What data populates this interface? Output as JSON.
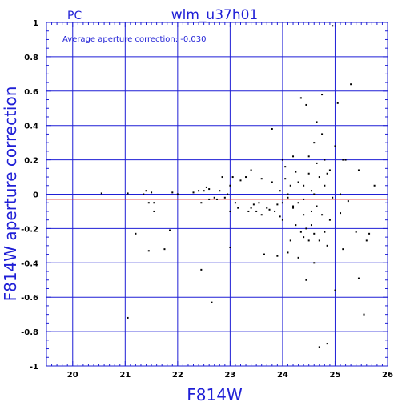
{
  "chart_data": {
    "type": "scatter",
    "title": "wlm_u37h01",
    "corner_label": "PC",
    "annotation": "Average aperture correction: -0.030",
    "xlabel": "F814W",
    "ylabel": "F814W aperture correction",
    "xlim": [
      19.5,
      26
    ],
    "ylim": [
      -1,
      1
    ],
    "x_ticks": [
      20,
      21,
      22,
      23,
      24,
      25,
      26
    ],
    "x_tick_labels": [
      "20",
      "21",
      "22",
      "23",
      "24",
      "25",
      "26"
    ],
    "y_ticks": [
      -1,
      -0.8,
      -0.6,
      -0.4,
      -0.2,
      0,
      0.2,
      0.4,
      0.6,
      0.8,
      1
    ],
    "y_tick_labels": [
      "-1",
      "-0.8",
      "-0.6",
      "-0.4",
      "-0.2",
      "0",
      "0.2",
      "0.4",
      "0.6",
      "0.8",
      "1"
    ],
    "grid": true,
    "reference_lines": [
      {
        "y": 0,
        "color": "#1f1fd6"
      },
      {
        "y": -0.03,
        "color": "#e02020"
      }
    ],
    "colors": {
      "axes": "#1f1fd6",
      "points": "#000000",
      "average_line": "#e02020"
    },
    "points": [
      [
        20.55,
        0.005
      ],
      [
        21.05,
        0.005
      ],
      [
        21.05,
        -0.72
      ],
      [
        21.2,
        -0.23
      ],
      [
        21.35,
        0.0
      ],
      [
        21.4,
        0.02
      ],
      [
        21.45,
        -0.05
      ],
      [
        21.45,
        -0.33
      ],
      [
        21.5,
        0.01
      ],
      [
        21.55,
        -0.05
      ],
      [
        21.55,
        -0.1
      ],
      [
        21.75,
        -0.32
      ],
      [
        21.85,
        -0.21
      ],
      [
        21.9,
        0.01
      ],
      [
        22.0,
        0.0
      ],
      [
        22.3,
        0.01
      ],
      [
        22.4,
        0.02
      ],
      [
        22.45,
        -0.05
      ],
      [
        22.45,
        -0.44
      ],
      [
        22.5,
        0.02
      ],
      [
        22.55,
        0.04
      ],
      [
        22.6,
        -0.03
      ],
      [
        22.6,
        0.03
      ],
      [
        22.65,
        -0.63
      ],
      [
        22.7,
        -0.02
      ],
      [
        22.75,
        -0.03
      ],
      [
        22.8,
        0.02
      ],
      [
        22.85,
        0.1
      ],
      [
        22.9,
        -0.02
      ],
      [
        22.95,
        0.0
      ],
      [
        23.0,
        0.05
      ],
      [
        23.0,
        -0.31
      ],
      [
        23.0,
        -0.1
      ],
      [
        23.05,
        0.1
      ],
      [
        23.1,
        -0.05
      ],
      [
        23.15,
        -0.08
      ],
      [
        23.2,
        0.08
      ],
      [
        23.3,
        0.1
      ],
      [
        23.35,
        -0.1
      ],
      [
        23.4,
        -0.08
      ],
      [
        23.4,
        0.14
      ],
      [
        23.45,
        -0.06
      ],
      [
        23.5,
        -0.1
      ],
      [
        23.55,
        -0.05
      ],
      [
        23.6,
        0.09
      ],
      [
        23.6,
        -0.12
      ],
      [
        23.65,
        -0.35
      ],
      [
        23.7,
        -0.08
      ],
      [
        23.75,
        -0.09
      ],
      [
        23.8,
        0.07
      ],
      [
        23.8,
        0.38
      ],
      [
        23.85,
        -0.1
      ],
      [
        23.9,
        -0.06
      ],
      [
        23.9,
        -0.36
      ],
      [
        23.95,
        0.02
      ],
      [
        24.0,
        0.2
      ],
      [
        24.0,
        -0.05
      ],
      [
        24.0,
        -0.15
      ],
      [
        24.05,
        0.16
      ],
      [
        24.05,
        0.09
      ],
      [
        24.1,
        -0.02
      ],
      [
        24.1,
        0.0
      ],
      [
        24.1,
        -0.34
      ],
      [
        24.15,
        -0.27
      ],
      [
        24.15,
        0.05
      ],
      [
        24.2,
        -0.08
      ],
      [
        24.2,
        0.22
      ],
      [
        24.25,
        0.13
      ],
      [
        24.25,
        -0.18
      ],
      [
        24.3,
        -0.05
      ],
      [
        24.3,
        -0.37
      ],
      [
        24.35,
        0.56
      ],
      [
        24.35,
        -0.22
      ],
      [
        24.4,
        0.05
      ],
      [
        24.4,
        -0.12
      ],
      [
        24.4,
        -0.03
      ],
      [
        24.45,
        0.52
      ],
      [
        24.45,
        -0.2
      ],
      [
        24.45,
        -0.5
      ],
      [
        24.5,
        0.22
      ],
      [
        24.5,
        -0.27
      ],
      [
        24.5,
        0.12
      ],
      [
        24.55,
        0.02
      ],
      [
        24.55,
        -0.1
      ],
      [
        24.6,
        0.3
      ],
      [
        24.6,
        -0.23
      ],
      [
        24.6,
        -0.4
      ],
      [
        24.65,
        0.42
      ],
      [
        24.65,
        0.18
      ],
      [
        24.65,
        -0.07
      ],
      [
        24.7,
        0.1
      ],
      [
        24.7,
        -0.27
      ],
      [
        24.7,
        -0.89
      ],
      [
        24.75,
        0.58
      ],
      [
        24.75,
        0.35
      ],
      [
        24.8,
        0.2
      ],
      [
        24.8,
        0.05
      ],
      [
        24.8,
        -0.22
      ],
      [
        24.85,
        -0.3
      ],
      [
        24.85,
        -0.87
      ],
      [
        24.9,
        0.14
      ],
      [
        24.9,
        -0.15
      ],
      [
        24.95,
        -0.02
      ],
      [
        24.95,
        0.98
      ],
      [
        25.0,
        0.28
      ],
      [
        25.0,
        -0.56
      ],
      [
        25.05,
        0.53
      ],
      [
        25.1,
        0.0
      ],
      [
        25.1,
        -0.11
      ],
      [
        25.15,
        -0.32
      ],
      [
        25.15,
        0.2
      ],
      [
        25.2,
        0.2
      ],
      [
        25.25,
        -0.04
      ],
      [
        25.3,
        0.64
      ],
      [
        25.4,
        -0.22
      ],
      [
        25.45,
        -0.49
      ],
      [
        25.45,
        0.14
      ],
      [
        25.55,
        -0.7
      ],
      [
        25.6,
        -0.27
      ],
      [
        25.65,
        -0.23
      ],
      [
        25.75,
        0.05
      ],
      [
        24.2,
        -0.07
      ],
      [
        24.55,
        -0.18
      ],
      [
        24.3,
        0.07
      ],
      [
        23.95,
        -0.13
      ],
      [
        24.6,
        0.0
      ],
      [
        24.75,
        -0.12
      ],
      [
        24.4,
        -0.25
      ],
      [
        24.85,
        0.12
      ]
    ]
  }
}
